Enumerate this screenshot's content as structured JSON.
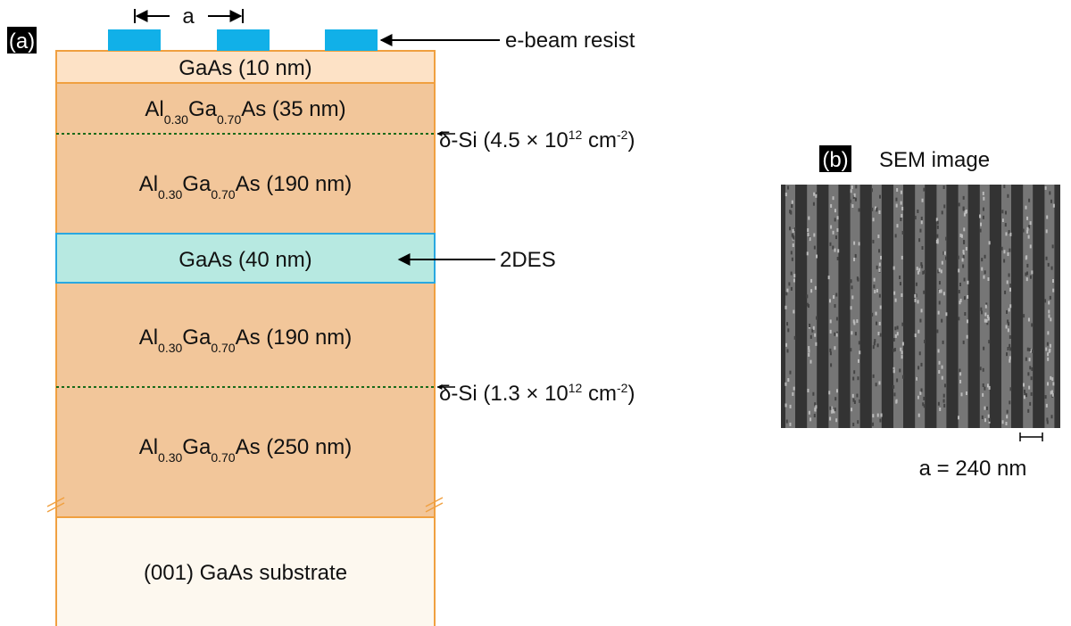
{
  "panel_a": {
    "label": "(a)",
    "pitch_label": "a",
    "resist_label": "e-beam resist",
    "layers": [
      {
        "label": [
          "GaAs (10 nm)"
        ]
      },
      {
        "label": [
          "Al",
          "0.30",
          "Ga",
          "0.70",
          "As (35 nm)"
        ]
      },
      {
        "label": [
          "Al",
          "0.30",
          "Ga",
          "0.70",
          "As (190 nm)"
        ]
      },
      {
        "label": [
          "GaAs (40 nm)"
        ]
      },
      {
        "label": [
          "Al",
          "0.30",
          "Ga",
          "0.70",
          "As (190 nm)"
        ]
      },
      {
        "label": [
          "Al",
          "0.30",
          "Ga",
          "0.70",
          "As (250 nm)"
        ]
      },
      {
        "label": [
          "(001) GaAs substrate"
        ]
      }
    ],
    "annotations": [
      {
        "text": [
          "δ-Si (4.5 × 10",
          "12",
          " cm",
          "-2",
          ")"
        ]
      },
      {
        "text": [
          "2DES"
        ]
      },
      {
        "text": [
          "δ-Si (1.3 × 10",
          "12",
          " cm",
          "-2",
          ")"
        ]
      }
    ]
  },
  "panel_b": {
    "label": "(b)",
    "title": "SEM image",
    "scale_label": "a = 240 nm"
  }
}
